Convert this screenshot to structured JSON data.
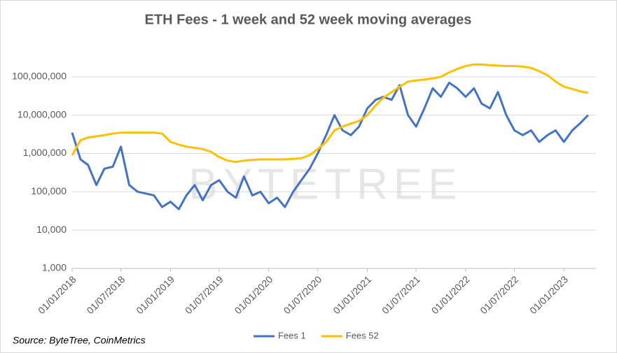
{
  "chart_data": {
    "type": "line",
    "title": "ETH Fees - 1 week and 52 week moving averages",
    "source": "Source: ByteTree, CoinMetrics",
    "watermark": "BYTETREE",
    "log_scale": true,
    "grid": true,
    "legend": "bottom",
    "xlim": [
      "2018-01-01",
      "2023-04-30"
    ],
    "xticks": [
      {
        "value": "2018-01-01",
        "label": "01/01/2018"
      },
      {
        "value": "2018-07-01",
        "label": "01/07/2018"
      },
      {
        "value": "2019-01-01",
        "label": "01/01/2019"
      },
      {
        "value": "2019-07-01",
        "label": "01/07/2019"
      },
      {
        "value": "2020-01-01",
        "label": "01/01/2020"
      },
      {
        "value": "2020-07-01",
        "label": "01/07/2020"
      },
      {
        "value": "2021-01-01",
        "label": "01/01/2021"
      },
      {
        "value": "2021-07-01",
        "label": "01/07/2021"
      },
      {
        "value": "2022-01-01",
        "label": "01/01/2022"
      },
      {
        "value": "2022-07-01",
        "label": "01/07/2022"
      },
      {
        "value": "2023-01-01",
        "label": "01/01/2023"
      }
    ],
    "ylim": [
      1000,
      1000000000
    ],
    "yticks": [
      {
        "value": 1000,
        "label": "1,000"
      },
      {
        "value": 10000,
        "label": "10,000"
      },
      {
        "value": 100000,
        "label": "100,000"
      },
      {
        "value": 1000000,
        "label": "1,000,000"
      },
      {
        "value": 10000000,
        "label": "10,000,000"
      },
      {
        "value": 100000000,
        "label": "100,000,000"
      }
    ],
    "x": [
      "2018-01-01",
      "2018-02-01",
      "2018-03-01",
      "2018-04-01",
      "2018-05-01",
      "2018-06-01",
      "2018-07-01",
      "2018-08-01",
      "2018-09-01",
      "2018-10-01",
      "2018-11-01",
      "2018-12-01",
      "2019-01-01",
      "2019-02-01",
      "2019-03-01",
      "2019-04-01",
      "2019-05-01",
      "2019-06-01",
      "2019-07-01",
      "2019-08-01",
      "2019-09-01",
      "2019-10-01",
      "2019-11-01",
      "2019-12-01",
      "2020-01-01",
      "2020-02-01",
      "2020-03-01",
      "2020-04-01",
      "2020-05-01",
      "2020-06-01",
      "2020-07-01",
      "2020-08-01",
      "2020-09-01",
      "2020-10-01",
      "2020-11-01",
      "2020-12-01",
      "2021-01-01",
      "2021-02-01",
      "2021-03-01",
      "2021-04-01",
      "2021-05-01",
      "2021-06-01",
      "2021-07-01",
      "2021-08-01",
      "2021-09-01",
      "2021-10-01",
      "2021-11-01",
      "2021-12-01",
      "2022-01-01",
      "2022-02-01",
      "2022-03-01",
      "2022-04-01",
      "2022-05-01",
      "2022-06-01",
      "2022-07-01",
      "2022-08-01",
      "2022-09-01",
      "2022-10-01",
      "2022-11-01",
      "2022-12-01",
      "2023-01-01",
      "2023-02-01",
      "2023-03-01",
      "2023-04-01"
    ],
    "series": [
      {
        "name": "Fees 1",
        "color": "#4472c4",
        "values": [
          3500000,
          700000,
          500000,
          150000,
          400000,
          450000,
          1500000,
          150000,
          100000,
          90000,
          80000,
          40000,
          55000,
          35000,
          80000,
          150000,
          60000,
          150000,
          200000,
          100000,
          70000,
          250000,
          80000,
          100000,
          50000,
          70000,
          40000,
          100000,
          200000,
          400000,
          1000000,
          3000000,
          10000000,
          4000000,
          3000000,
          5000000,
          15000000,
          25000000,
          30000000,
          25000000,
          60000000,
          10000000,
          5000000,
          15000000,
          50000000,
          30000000,
          70000000,
          50000000,
          30000000,
          50000000,
          20000000,
          15000000,
          40000000,
          10000000,
          4000000,
          3000000,
          4000000,
          2000000,
          3000000,
          4000000,
          2000000,
          4000000,
          6000000,
          10000000
        ]
      },
      {
        "name": "Fees 52",
        "color": "#ffc000",
        "values": [
          900000,
          2200000,
          2600000,
          2800000,
          3000000,
          3300000,
          3500000,
          3500000,
          3500000,
          3500000,
          3500000,
          3300000,
          2000000,
          1700000,
          1500000,
          1400000,
          1300000,
          1100000,
          800000,
          650000,
          600000,
          650000,
          680000,
          700000,
          700000,
          700000,
          700000,
          720000,
          750000,
          900000,
          1300000,
          2000000,
          4000000,
          5000000,
          6000000,
          7000000,
          10000000,
          18000000,
          28000000,
          40000000,
          55000000,
          75000000,
          80000000,
          85000000,
          90000000,
          100000000,
          130000000,
          160000000,
          190000000,
          210000000,
          210000000,
          200000000,
          195000000,
          190000000,
          190000000,
          185000000,
          170000000,
          140000000,
          110000000,
          75000000,
          55000000,
          48000000,
          42000000,
          38000000
        ]
      }
    ]
  }
}
